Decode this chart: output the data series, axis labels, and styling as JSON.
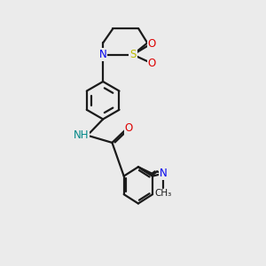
{
  "bg_color": "#ebebeb",
  "bond_color": "#1a1a1a",
  "bond_width": 1.6,
  "N_color": "#0000ee",
  "NH_color": "#008888",
  "O_color": "#dd0000",
  "S_color": "#bbbb00",
  "font_size": 8.5,
  "fig_width": 3.0,
  "fig_height": 3.0,
  "xlim": [
    0,
    10
  ],
  "ylim": [
    0,
    10
  ]
}
